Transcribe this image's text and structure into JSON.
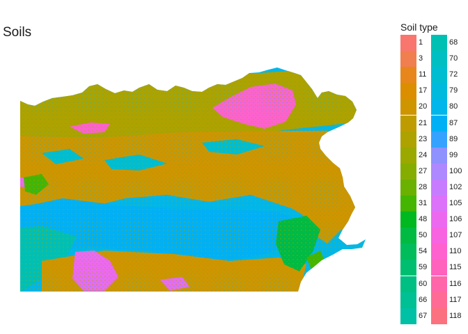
{
  "title": "Soils",
  "legend": {
    "title": "Soil type",
    "columns": [
      [
        {
          "label": "1",
          "color": "#F8766D"
        },
        {
          "label": "3",
          "color": "#F17E4F"
        },
        {
          "label": "11",
          "color": "#E7861B"
        },
        {
          "label": "17",
          "color": "#DB8E00"
        },
        {
          "label": "20",
          "color": "#CE9500"
        },
        {
          "label": "21",
          "color": "#BE9C00"
        },
        {
          "label": "23",
          "color": "#ADA200"
        },
        {
          "label": "24",
          "color": "#9AA800"
        },
        {
          "label": "27",
          "color": "#85AD00"
        },
        {
          "label": "28",
          "color": "#6BB100"
        },
        {
          "label": "31",
          "color": "#44B500"
        },
        {
          "label": "48",
          "color": "#00B81F"
        },
        {
          "label": "50",
          "color": "#00BA42"
        },
        {
          "label": "54",
          "color": "#00BC5B"
        },
        {
          "label": "59",
          "color": "#00BE70"
        },
        {
          "label": "60",
          "color": "#00BF83"
        },
        {
          "label": "66",
          "color": "#00C094"
        },
        {
          "label": "67",
          "color": "#00C1A5"
        }
      ],
      [
        {
          "label": "68",
          "color": "#00C0B4"
        },
        {
          "label": "70",
          "color": "#00BFC3"
        },
        {
          "label": "72",
          "color": "#00BDD1"
        },
        {
          "label": "79",
          "color": "#00BADE"
        },
        {
          "label": "80",
          "color": "#00B6EA"
        },
        {
          "label": "87",
          "color": "#00B0F6"
        },
        {
          "label": "89",
          "color": "#35A2FF"
        },
        {
          "label": "99",
          "color": "#8F91FF"
        },
        {
          "label": "100",
          "color": "#AD88FF"
        },
        {
          "label": "102",
          "color": "#C77CFF"
        },
        {
          "label": "105",
          "color": "#DC71FA"
        },
        {
          "label": "106",
          "color": "#EC69EF"
        },
        {
          "label": "107",
          "color": "#F763E0"
        },
        {
          "label": "110",
          "color": "#FF61CF"
        },
        {
          "label": "115",
          "color": "#FF62BC"
        },
        {
          "label": "116",
          "color": "#FF65A9"
        },
        {
          "label": "117",
          "color": "#FF6B94"
        },
        {
          "label": "118",
          "color": "#FC717F"
        }
      ]
    ]
  },
  "map": {
    "colors": {
      "background": "#00B6EA",
      "main": "#CE9500",
      "olive": "#ADA200",
      "green": "#44B500",
      "darkgreen": "#00BA42",
      "cyan": "#00BDD1",
      "teal": "#00C0B4",
      "pink": "#FF61CF",
      "violet": "#EC69EF",
      "blue": "#00B0F6"
    }
  }
}
